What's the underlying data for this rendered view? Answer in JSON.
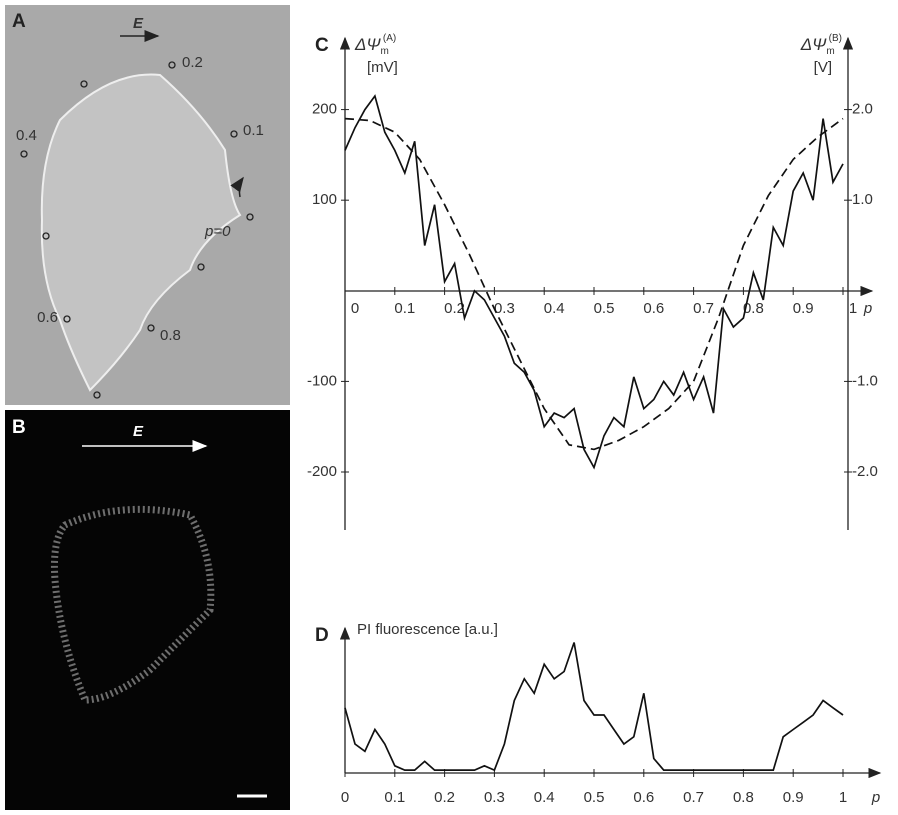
{
  "image_panels": [
    {
      "label": "A",
      "field_label": "E",
      "markers": [
        "0.2",
        "0.1",
        "0.4",
        "p=0",
        "0.6",
        "0.8"
      ]
    },
    {
      "label": "B",
      "field_label": "E"
    }
  ],
  "chart_data": [
    {
      "type": "line",
      "panel_label": "C",
      "y_label": {
        "symbol": "ΔΨ",
        "sub": "m",
        "sup": "(A)",
        "unit": "[mV]"
      },
      "y2_label": {
        "symbol": "ΔΨ",
        "sub": "m",
        "sup": "(B)",
        "unit": "[V]"
      },
      "x_label": "p",
      "xlim": [
        0,
        1
      ],
      "xticks": [
        0,
        0.1,
        0.2,
        0.3,
        0.4,
        0.5,
        0.6,
        0.7,
        0.8,
        0.9,
        1
      ],
      "ylim": [
        -264,
        279
      ],
      "yticks": [
        -200,
        -100,
        100,
        200
      ],
      "y2lim": [
        -2.64,
        2.79
      ],
      "y2ticks": [
        {
          "value": -2,
          "label": "-2.0"
        },
        {
          "value": -1,
          "label": "-1.0"
        },
        {
          "value": 1,
          "label": "1.0"
        },
        {
          "value": 2,
          "label": "2.0"
        }
      ],
      "series": [
        {
          "color": "#111",
          "dashed": false,
          "x": [
            0,
            0.02,
            0.04,
            0.06,
            0.08,
            0.1,
            0.12,
            0.14,
            0.16,
            0.18,
            0.2,
            0.22,
            0.24,
            0.26,
            0.28,
            0.3,
            0.32,
            0.34,
            0.36,
            0.38,
            0.4,
            0.42,
            0.44,
            0.46,
            0.48,
            0.5,
            0.52,
            0.54,
            0.56,
            0.58,
            0.6,
            0.62,
            0.64,
            0.66,
            0.68,
            0.7,
            0.72,
            0.74,
            0.76,
            0.78,
            0.8,
            0.82,
            0.84,
            0.86,
            0.88,
            0.9,
            0.92,
            0.94,
            0.96,
            0.98,
            1
          ],
          "values": [
            155,
            180,
            200,
            215,
            175,
            155,
            130,
            165,
            50,
            95,
            10,
            30,
            -30,
            0,
            -10,
            -30,
            -50,
            -80,
            -90,
            -110,
            -150,
            -135,
            -140,
            -130,
            -175,
            -195,
            -160,
            -140,
            -150,
            -95,
            -130,
            -120,
            -100,
            -115,
            -90,
            -120,
            -95,
            -135,
            -20,
            -40,
            -30,
            20,
            -10,
            70,
            50,
            110,
            130,
            100,
            190,
            120,
            140
          ]
        },
        {
          "color": "#111",
          "dashed": true,
          "axis": "y2",
          "x": [
            0,
            0.05,
            0.1,
            0.15,
            0.2,
            0.25,
            0.3,
            0.35,
            0.4,
            0.45,
            0.5,
            0.55,
            0.6,
            0.65,
            0.7,
            0.75,
            0.8,
            0.85,
            0.9,
            0.95,
            1
          ],
          "values": [
            1.9,
            1.88,
            1.75,
            1.45,
            0.95,
            0.4,
            -0.2,
            -0.75,
            -1.3,
            -1.7,
            -1.75,
            -1.65,
            -1.5,
            -1.3,
            -1.0,
            -0.3,
            0.5,
            1.05,
            1.45,
            1.7,
            1.9
          ]
        }
      ]
    },
    {
      "type": "line",
      "panel_label": "D",
      "y_label": "PI fluorescence [a.u.]",
      "x_label": "p",
      "xlim": [
        0,
        1
      ],
      "xticks": [
        0,
        0.1,
        0.2,
        0.3,
        0.4,
        0.5,
        0.6,
        0.7,
        0.8,
        0.9,
        1
      ],
      "ylim": [
        0,
        100
      ],
      "series": [
        {
          "color": "#111",
          "dashed": false,
          "x": [
            0,
            0.02,
            0.04,
            0.06,
            0.08,
            0.1,
            0.12,
            0.14,
            0.16,
            0.18,
            0.2,
            0.22,
            0.24,
            0.26,
            0.28,
            0.3,
            0.32,
            0.34,
            0.36,
            0.38,
            0.4,
            0.42,
            0.44,
            0.46,
            0.48,
            0.5,
            0.52,
            0.54,
            0.56,
            0.58,
            0.6,
            0.62,
            0.64,
            0.66,
            0.68,
            0.7,
            0.72,
            0.74,
            0.76,
            0.78,
            0.8,
            0.82,
            0.84,
            0.86,
            0.88,
            0.9,
            0.92,
            0.94,
            0.96,
            0.98,
            1
          ],
          "values": [
            45,
            20,
            15,
            30,
            20,
            5,
            2,
            2,
            8,
            2,
            2,
            2,
            2,
            2,
            5,
            2,
            20,
            50,
            65,
            55,
            75,
            65,
            70,
            90,
            50,
            40,
            40,
            30,
            20,
            25,
            55,
            10,
            2,
            2,
            2,
            2,
            2,
            2,
            2,
            2,
            2,
            2,
            2,
            2,
            25,
            30,
            35,
            40,
            50,
            45,
            40
          ]
        }
      ]
    }
  ]
}
